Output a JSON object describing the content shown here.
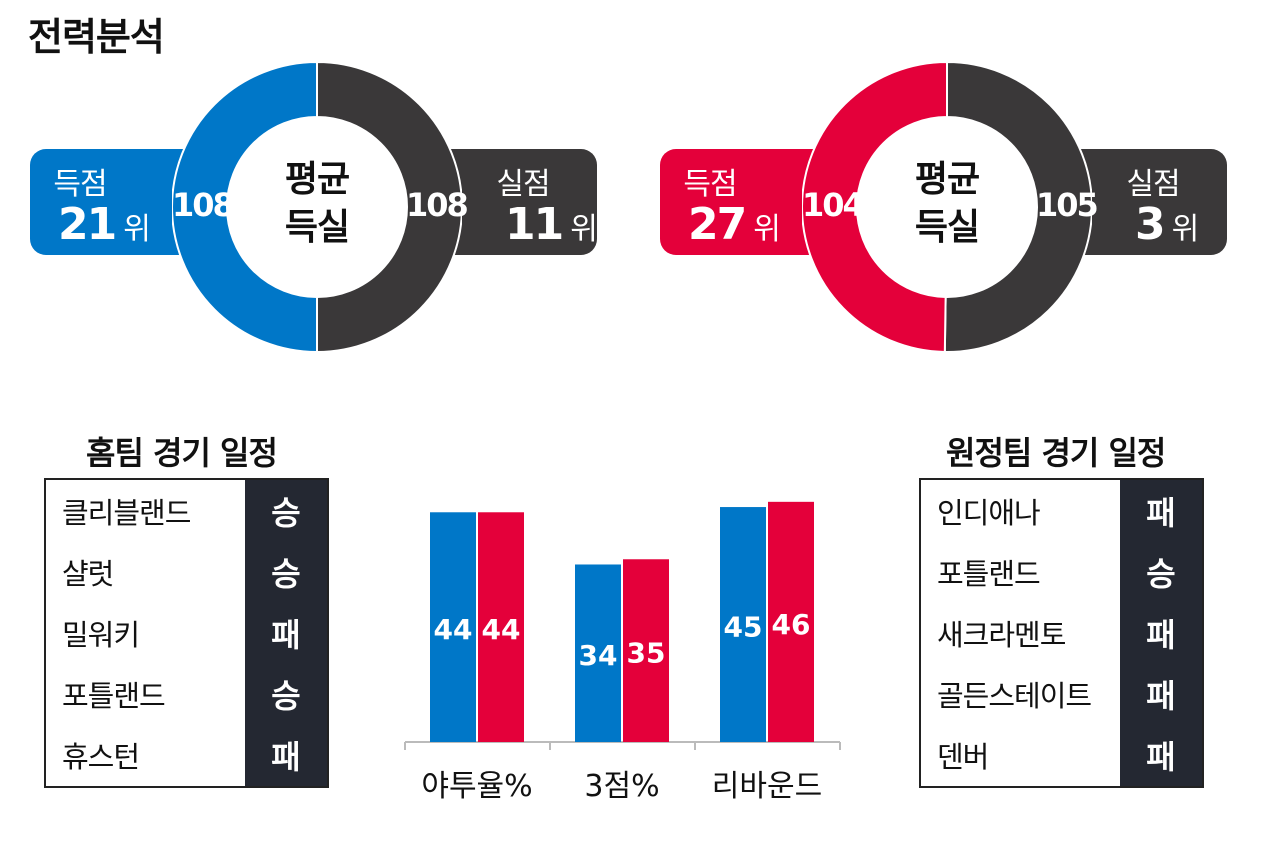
{
  "title": "전력분석",
  "teams": [
    {
      "key": "home",
      "color": "#0077c8",
      "scored_label": "득점",
      "scored_rank": "21",
      "allowed_label": "실점",
      "allowed_rank": "11",
      "rank_unit": "위",
      "center_line1": "평균",
      "center_line2": "득실",
      "avg_scored": "108",
      "avg_allowed": "108"
    },
    {
      "key": "away",
      "color": "#e4003a",
      "scored_label": "득점",
      "scored_rank": "27",
      "allowed_label": "실점",
      "allowed_rank": "3",
      "rank_unit": "위",
      "center_line1": "평균",
      "center_line2": "득실",
      "avg_scored": "104",
      "avg_allowed": "105"
    }
  ],
  "colors": {
    "home": "#0077c8",
    "away": "#e4003a",
    "dark": "#3a3839",
    "result_bg": "#242832"
  },
  "schedules": {
    "home": {
      "title": "홈팀 경기 일정",
      "games": [
        {
          "opponent": "클리블랜드",
          "result": "승"
        },
        {
          "opponent": "샬럿",
          "result": "승"
        },
        {
          "opponent": "밀워키",
          "result": "패"
        },
        {
          "opponent": "포틀랜드",
          "result": "승"
        },
        {
          "opponent": "휴스턴",
          "result": "패"
        }
      ]
    },
    "away": {
      "title": "원정팀 경기 일정",
      "games": [
        {
          "opponent": "인디애나",
          "result": "패"
        },
        {
          "opponent": "포틀랜드",
          "result": "승"
        },
        {
          "opponent": "새크라멘토",
          "result": "패"
        },
        {
          "opponent": "골든스테이트",
          "result": "패"
        },
        {
          "opponent": "덴버",
          "result": "패"
        }
      ]
    }
  },
  "chart_data": [
    {
      "type": "pie",
      "labels": [
        "득점",
        "실점"
      ],
      "values": [
        108,
        108
      ],
      "colors": [
        "#0077c8",
        "#3a3839"
      ]
    },
    {
      "type": "pie",
      "labels": [
        "득점",
        "실점"
      ],
      "values": [
        104,
        105
      ],
      "colors": [
        "#e4003a",
        "#3a3839"
      ]
    },
    {
      "type": "bar",
      "categories": [
        "야투율%",
        "3점%",
        "리바운드"
      ],
      "series": [
        {
          "values": [
            44,
            34,
            45
          ],
          "color": "#0077c8"
        },
        {
          "values": [
            44,
            35,
            46
          ],
          "color": "#e4003a"
        }
      ],
      "ylim": [
        0,
        50
      ],
      "grid": false
    }
  ]
}
